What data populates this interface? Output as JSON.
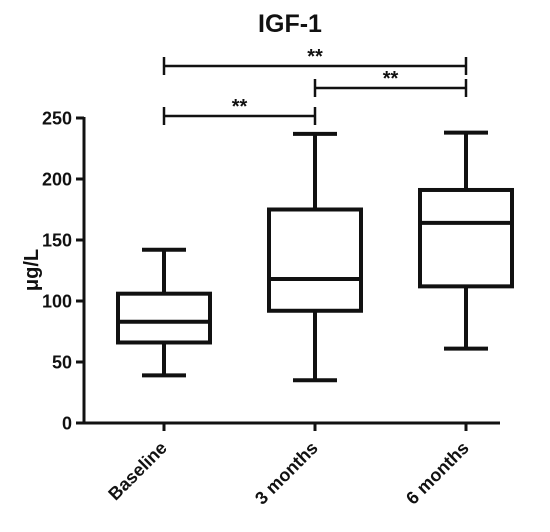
{
  "chart_data": {
    "type": "box",
    "title": "IGF-1",
    "xlabel": "",
    "ylabel": "μg/L",
    "ylim": [
      0,
      250
    ],
    "yticks": [
      0,
      50,
      100,
      150,
      200,
      250
    ],
    "categories": [
      "Baseline",
      "3 months",
      "6 months"
    ],
    "boxes": [
      {
        "category": "Baseline",
        "min": 39,
        "q1": 66,
        "median": 83,
        "q3": 106,
        "max": 142
      },
      {
        "category": "3 months",
        "min": 35,
        "q1": 92,
        "median": 118,
        "q3": 175,
        "max": 237
      },
      {
        "category": "6 months",
        "min": 61,
        "q1": 112,
        "median": 164,
        "q3": 191,
        "max": 238
      }
    ],
    "significance": [
      {
        "from": "Baseline",
        "to": "3 months",
        "label": "**"
      },
      {
        "from": "3 months",
        "to": "6 months",
        "label": "**"
      },
      {
        "from": "Baseline",
        "to": "6 months",
        "label": "**"
      }
    ]
  }
}
